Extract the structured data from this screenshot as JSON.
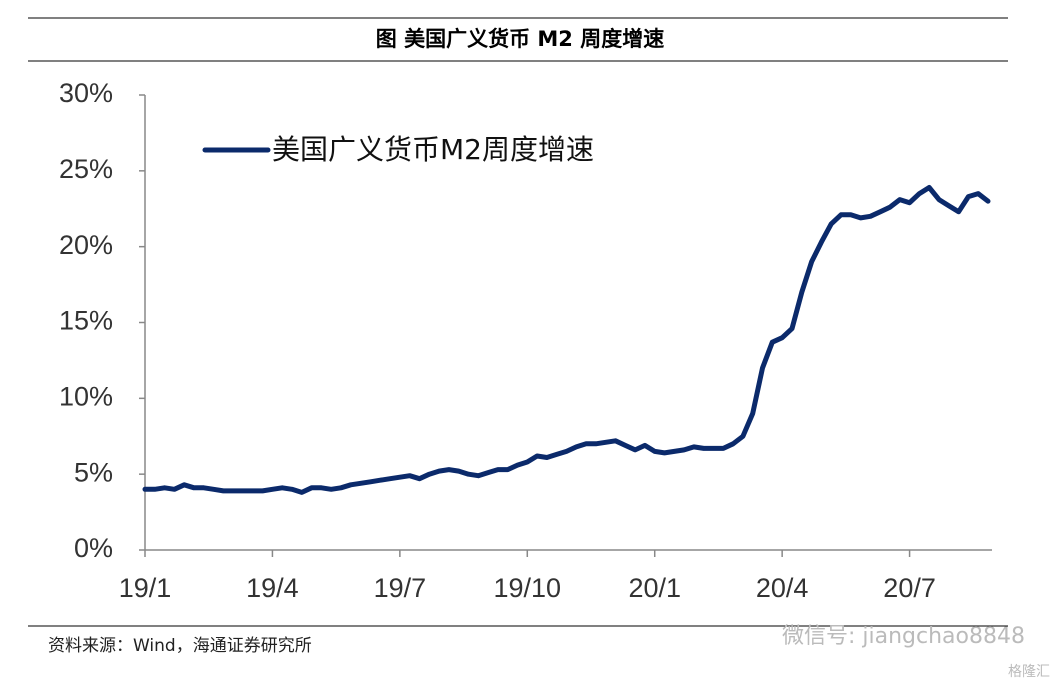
{
  "header": {
    "title": "图  美国广义货币 M2 周度增速"
  },
  "chart_data": {
    "type": "line",
    "categories": [
      "19/1",
      null,
      null,
      null,
      null,
      null,
      null,
      null,
      null,
      null,
      null,
      null,
      null,
      "19/4",
      null,
      null,
      null,
      null,
      null,
      null,
      null,
      null,
      null,
      null,
      null,
      null,
      "19/7",
      null,
      null,
      null,
      null,
      null,
      null,
      null,
      null,
      null,
      null,
      null,
      null,
      "19/10",
      null,
      null,
      null,
      null,
      null,
      null,
      null,
      null,
      null,
      null,
      null,
      null,
      "20/1",
      null,
      null,
      null,
      null,
      null,
      null,
      null,
      null,
      null,
      null,
      null,
      null,
      "20/4",
      null,
      null,
      null,
      null,
      null,
      null,
      null,
      null,
      null,
      null,
      null,
      null,
      "20/7",
      null,
      null,
      null,
      null,
      null,
      null,
      null,
      null
    ],
    "series": [
      {
        "name": "美国广义货币M2周度增速",
        "color": "#0b2a6b",
        "values": [
          4.0,
          4.0,
          4.1,
          4.0,
          4.3,
          4.1,
          4.1,
          4.0,
          3.9,
          3.9,
          3.9,
          3.9,
          3.9,
          4.0,
          4.1,
          4.0,
          3.8,
          4.1,
          4.1,
          4.0,
          4.1,
          4.3,
          4.4,
          4.5,
          4.6,
          4.7,
          4.8,
          4.9,
          4.7,
          5.0,
          5.2,
          5.3,
          5.2,
          5.0,
          4.9,
          5.1,
          5.3,
          5.3,
          5.6,
          5.8,
          6.2,
          6.1,
          6.3,
          6.5,
          6.8,
          7.0,
          7.0,
          7.1,
          7.2,
          6.9,
          6.6,
          6.9,
          6.5,
          6.4,
          6.5,
          6.6,
          6.8,
          6.7,
          6.7,
          6.7,
          7.0,
          7.5,
          9.0,
          12.0,
          13.7,
          14.0,
          14.6,
          17.0,
          19.0,
          20.3,
          21.5,
          22.1,
          22.1,
          21.9,
          22.0,
          22.3,
          22.6,
          23.1,
          22.9,
          23.5,
          23.9,
          23.1,
          22.7,
          22.3,
          23.3,
          23.5,
          23.0
        ]
      }
    ],
    "ylim": [
      0,
      30
    ],
    "yticks": [
      {
        "value": 0,
        "label": "0%"
      },
      {
        "value": 5,
        "label": "5%"
      },
      {
        "value": 10,
        "label": "10%"
      },
      {
        "value": 15,
        "label": "15%"
      },
      {
        "value": 20,
        "label": "20%"
      },
      {
        "value": 25,
        "label": "25%"
      },
      {
        "value": 30,
        "label": "30%"
      }
    ],
    "legend": "top-left"
  },
  "footer": {
    "source": "资料来源：Wind，海通证券研究所",
    "watermark": "微信号: jiangchao8848",
    "logo": "格隆汇"
  }
}
